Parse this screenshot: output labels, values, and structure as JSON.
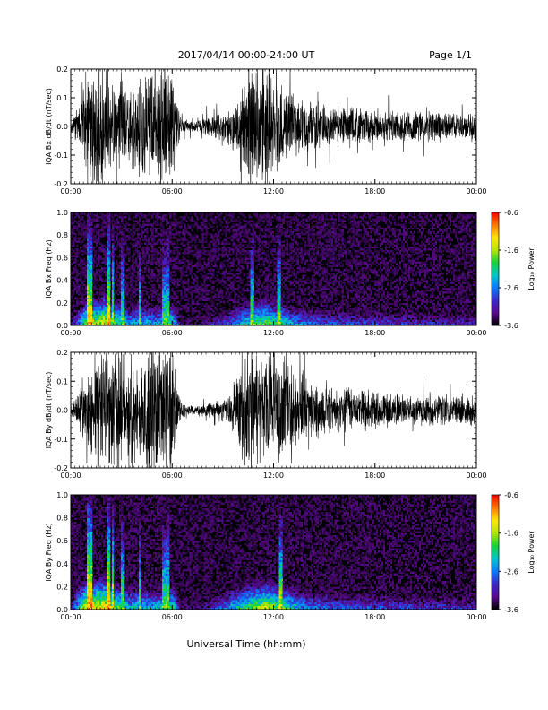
{
  "header": {
    "title": "2017/04/14  00:00-24:00 UT",
    "page": "Page 1/1"
  },
  "xlabel": "Universal Time (hh:mm)",
  "colors": {
    "trace": "#000000",
    "colormap": [
      "#000000",
      "#5a0a8c",
      "#3c28c8",
      "#0a78ff",
      "#00c8c8",
      "#14d23c",
      "#b4e600",
      "#ffe600",
      "#ff7800",
      "#ff0000"
    ]
  },
  "chart_data": [
    {
      "id": "bx-trace",
      "type": "line",
      "ylabel": "IQA Bx dB/dt (nT/sec)",
      "ylim": [
        -0.2,
        0.2
      ],
      "yticks": [
        "-0.2",
        "-0.1",
        "0.0",
        "0.1",
        "0.2"
      ],
      "xticks": [
        "00:00",
        "06:00",
        "12:00",
        "18:00",
        "00:00"
      ],
      "xlim_hours": [
        0,
        24
      ],
      "envelope": {
        "hours": [
          0,
          0.5,
          1,
          1.5,
          2,
          2.5,
          3,
          3.5,
          4,
          4.5,
          5,
          5.5,
          6,
          6.5,
          7,
          7.5,
          8,
          8.5,
          9,
          9.5,
          10,
          10.5,
          11,
          11.5,
          12,
          12.5,
          13,
          13.5,
          14,
          15,
          16,
          17,
          18,
          19,
          20,
          21,
          22,
          23,
          24
        ],
        "amplitude": [
          0.03,
          0.06,
          0.2,
          0.2,
          0.2,
          0.15,
          0.2,
          0.12,
          0.2,
          0.2,
          0.18,
          0.2,
          0.2,
          0.03,
          0.02,
          0.02,
          0.03,
          0.04,
          0.05,
          0.07,
          0.12,
          0.2,
          0.2,
          0.2,
          0.17,
          0.15,
          0.12,
          0.1,
          0.09,
          0.07,
          0.06,
          0.07,
          0.06,
          0.05,
          0.05,
          0.05,
          0.045,
          0.045,
          0.05
        ]
      }
    },
    {
      "id": "bx-spectrogram",
      "type": "heatmap",
      "ylabel": "IQA Bx Freq (Hz)",
      "ylim": [
        0,
        1.0
      ],
      "yticks": [
        "0.0",
        "0.2",
        "0.4",
        "0.6",
        "0.8",
        "1.0"
      ],
      "xticks": [
        "00:00",
        "06:00",
        "12:00",
        "18:00",
        "00:00"
      ],
      "xlim_hours": [
        0,
        24
      ],
      "colorbar": {
        "label": "Log₁₀ Power",
        "ticks": [
          "-0.6",
          "-1.6",
          "-2.6",
          "-3.6"
        ],
        "range": [
          -3.6,
          -0.6
        ]
      },
      "activity": {
        "hours": [
          0,
          0.5,
          1,
          1.5,
          2,
          2.5,
          3,
          3.5,
          4,
          4.5,
          5,
          5.5,
          6,
          6.5,
          7,
          7.5,
          8,
          8.5,
          9,
          9.5,
          10,
          10.5,
          11,
          11.5,
          12,
          12.5,
          13,
          13.5,
          14,
          15,
          16,
          17,
          18,
          19,
          20,
          21,
          22,
          23,
          24
        ],
        "low_freq_power": [
          -3.2,
          -2.4,
          -1.4,
          -1.6,
          -1.2,
          -1.8,
          -2.0,
          -2.4,
          -2.2,
          -2.3,
          -2.4,
          -2.2,
          -2.0,
          -3.2,
          -3.3,
          -3.3,
          -3.2,
          -3.0,
          -2.9,
          -2.6,
          -2.3,
          -2.1,
          -1.8,
          -1.7,
          -1.9,
          -2.0,
          -2.3,
          -2.5,
          -2.6,
          -2.7,
          -2.8,
          -2.8,
          -2.8,
          -2.9,
          -2.9,
          -2.9,
          -3.0,
          -3.0,
          -3.0
        ]
      },
      "spikes_hours": [
        1.0,
        1.2,
        2.2,
        2.5,
        3.1,
        4.1,
        5.5,
        5.75,
        10.7,
        12.3
      ]
    },
    {
      "id": "by-trace",
      "type": "line",
      "ylabel": "IQA By dB/dt (nT/sec)",
      "ylim": [
        -0.2,
        0.2
      ],
      "yticks": [
        "-0.2",
        "-0.1",
        "0.0",
        "0.1",
        "0.2"
      ],
      "xticks": [
        "00:00",
        "06:00",
        "12:00",
        "18:00",
        "00:00"
      ],
      "xlim_hours": [
        0,
        24
      ],
      "envelope": {
        "hours": [
          0,
          0.5,
          1,
          1.5,
          2,
          2.5,
          3,
          3.5,
          4,
          4.5,
          5,
          5.5,
          6,
          6.5,
          7,
          7.5,
          8,
          8.5,
          9,
          9.5,
          10,
          10.5,
          11,
          11.5,
          12,
          12.5,
          13,
          13.5,
          14,
          15,
          16,
          17,
          18,
          19,
          20,
          21,
          22,
          23,
          24
        ],
        "amplitude": [
          0.02,
          0.05,
          0.2,
          0.2,
          0.2,
          0.2,
          0.2,
          0.2,
          0.2,
          0.2,
          0.2,
          0.2,
          0.2,
          0.03,
          0.02,
          0.02,
          0.02,
          0.03,
          0.04,
          0.06,
          0.14,
          0.2,
          0.2,
          0.2,
          0.2,
          0.2,
          0.16,
          0.12,
          0.1,
          0.08,
          0.07,
          0.08,
          0.06,
          0.06,
          0.05,
          0.05,
          0.05,
          0.05,
          0.05
        ]
      }
    },
    {
      "id": "by-spectrogram",
      "type": "heatmap",
      "ylabel": "IQA By Freq (Hz)",
      "ylim": [
        0,
        1.0
      ],
      "yticks": [
        "0.0",
        "0.2",
        "0.4",
        "0.6",
        "0.8",
        "1.0"
      ],
      "xticks": [
        "00:00",
        "06:00",
        "12:00",
        "18:00",
        "00:00"
      ],
      "xlim_hours": [
        0,
        24
      ],
      "colorbar": {
        "label": "Log₁₀ Power",
        "ticks": [
          "-0.6",
          "-1.6",
          "-2.6",
          "-3.6"
        ],
        "range": [
          -3.6,
          -0.6
        ]
      },
      "activity": {
        "hours": [
          0,
          0.5,
          1,
          1.5,
          2,
          2.5,
          3,
          3.5,
          4,
          4.5,
          5,
          5.5,
          6,
          6.5,
          7,
          7.5,
          8,
          8.5,
          9,
          9.5,
          10,
          10.5,
          11,
          11.5,
          12,
          12.5,
          13,
          13.5,
          14,
          15,
          16,
          17,
          18,
          19,
          20,
          21,
          22,
          23,
          24
        ],
        "low_freq_power": [
          -3.0,
          -2.0,
          -1.2,
          -1.3,
          -1.1,
          -1.6,
          -1.9,
          -2.2,
          -2.1,
          -2.2,
          -2.3,
          -2.1,
          -1.9,
          -3.2,
          -3.3,
          -3.3,
          -3.1,
          -2.9,
          -2.6,
          -2.3,
          -2.0,
          -1.8,
          -1.6,
          -1.5,
          -1.6,
          -1.8,
          -2.0,
          -2.3,
          -2.5,
          -2.6,
          -2.7,
          -2.7,
          -2.8,
          -2.8,
          -2.8,
          -2.9,
          -2.9,
          -2.9,
          -2.9
        ]
      },
      "spikes_hours": [
        1.0,
        1.2,
        2.2,
        2.5,
        3.1,
        4.1,
        5.5,
        5.75,
        12.4
      ]
    }
  ]
}
